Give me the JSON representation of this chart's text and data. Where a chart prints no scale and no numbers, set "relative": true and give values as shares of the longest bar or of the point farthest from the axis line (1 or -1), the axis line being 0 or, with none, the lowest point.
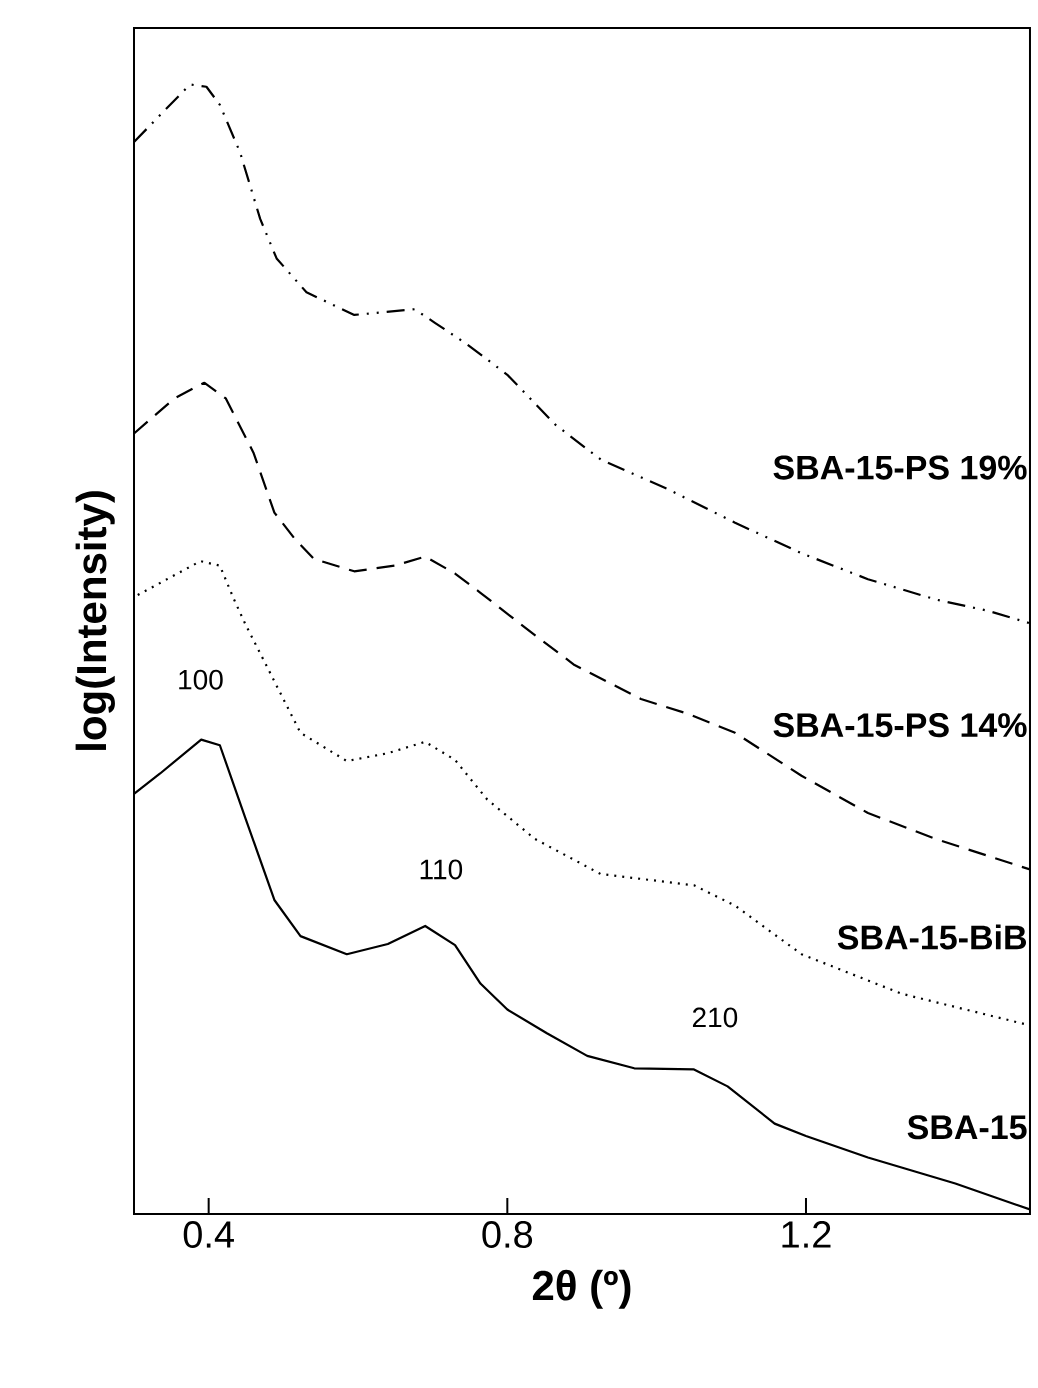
{
  "chart_data": {
    "type": "line",
    "relative": true,
    "xlabel": "2θ (º)",
    "ylabel": "log(Intensity)",
    "xlim": [
      0.3,
      1.5
    ],
    "xticks": [
      0.4,
      0.8,
      1.2
    ],
    "grid": false,
    "legend": false,
    "marker": "none",
    "annotations": [
      "100",
      "110",
      "210"
    ],
    "series": [
      {
        "name": "SBA-15-PS 19%",
        "color": "#000000",
        "line_style": "dashdotdotted",
        "x": [
          0.3,
          0.335,
          0.375,
          0.397,
          0.415,
          0.442,
          0.469,
          0.491,
          0.531,
          0.595,
          0.676,
          0.703,
          0.746,
          0.8,
          0.864,
          0.925,
          1.014,
          1.105,
          1.194,
          1.283,
          1.374,
          1.444,
          1.5
        ],
        "values": [
          0.949,
          0.973,
          1.0,
          0.998,
          0.982,
          0.94,
          0.881,
          0.846,
          0.816,
          0.796,
          0.801,
          0.789,
          0.77,
          0.743,
          0.699,
          0.668,
          0.642,
          0.612,
          0.585,
          0.562,
          0.544,
          0.534,
          0.523
        ]
      },
      {
        "name": "SBA-15-PS 14%",
        "color": "#000000",
        "line_style": "dashed",
        "x": [
          0.3,
          0.354,
          0.394,
          0.423,
          0.46,
          0.488,
          0.515,
          0.541,
          0.595,
          0.649,
          0.69,
          0.73,
          0.764,
          0.826,
          0.89,
          0.979,
          1.041,
          1.105,
          1.194,
          1.283,
          1.374,
          1.5
        ],
        "values": [
          0.691,
          0.722,
          0.736,
          0.722,
          0.674,
          0.621,
          0.598,
          0.58,
          0.569,
          0.574,
          0.582,
          0.567,
          0.55,
          0.518,
          0.486,
          0.456,
          0.443,
          0.426,
          0.388,
          0.355,
          0.332,
          0.305
        ]
      },
      {
        "name": "SBA-15-BiB",
        "color": "#000000",
        "line_style": "dotted",
        "x": [
          0.305,
          0.389,
          0.415,
          0.434,
          0.45,
          0.477,
          0.523,
          0.585,
          0.64,
          0.69,
          0.73,
          0.773,
          0.837,
          0.925,
          1.05,
          1.105,
          1.194,
          1.328,
          1.5
        ],
        "values": [
          0.548,
          0.578,
          0.574,
          0.544,
          0.521,
          0.486,
          0.426,
          0.401,
          0.408,
          0.418,
          0.402,
          0.367,
          0.332,
          0.301,
          0.291,
          0.273,
          0.23,
          0.195,
          0.167
        ]
      },
      {
        "name": "SBA-15",
        "color": "#000000",
        "line_style": "solid",
        "x": [
          0.3,
          0.335,
          0.39,
          0.415,
          0.45,
          0.488,
          0.523,
          0.585,
          0.64,
          0.69,
          0.73,
          0.764,
          0.8,
          0.853,
          0.907,
          0.97,
          1.05,
          1.095,
          1.158,
          1.2,
          1.283,
          1.4,
          1.5
        ],
        "values": [
          0.372,
          0.39,
          0.42,
          0.415,
          0.349,
          0.278,
          0.246,
          0.23,
          0.239,
          0.255,
          0.238,
          0.204,
          0.181,
          0.16,
          0.14,
          0.129,
          0.128,
          0.113,
          0.08,
          0.069,
          0.05,
          0.027,
          0.004
        ]
      }
    ]
  }
}
